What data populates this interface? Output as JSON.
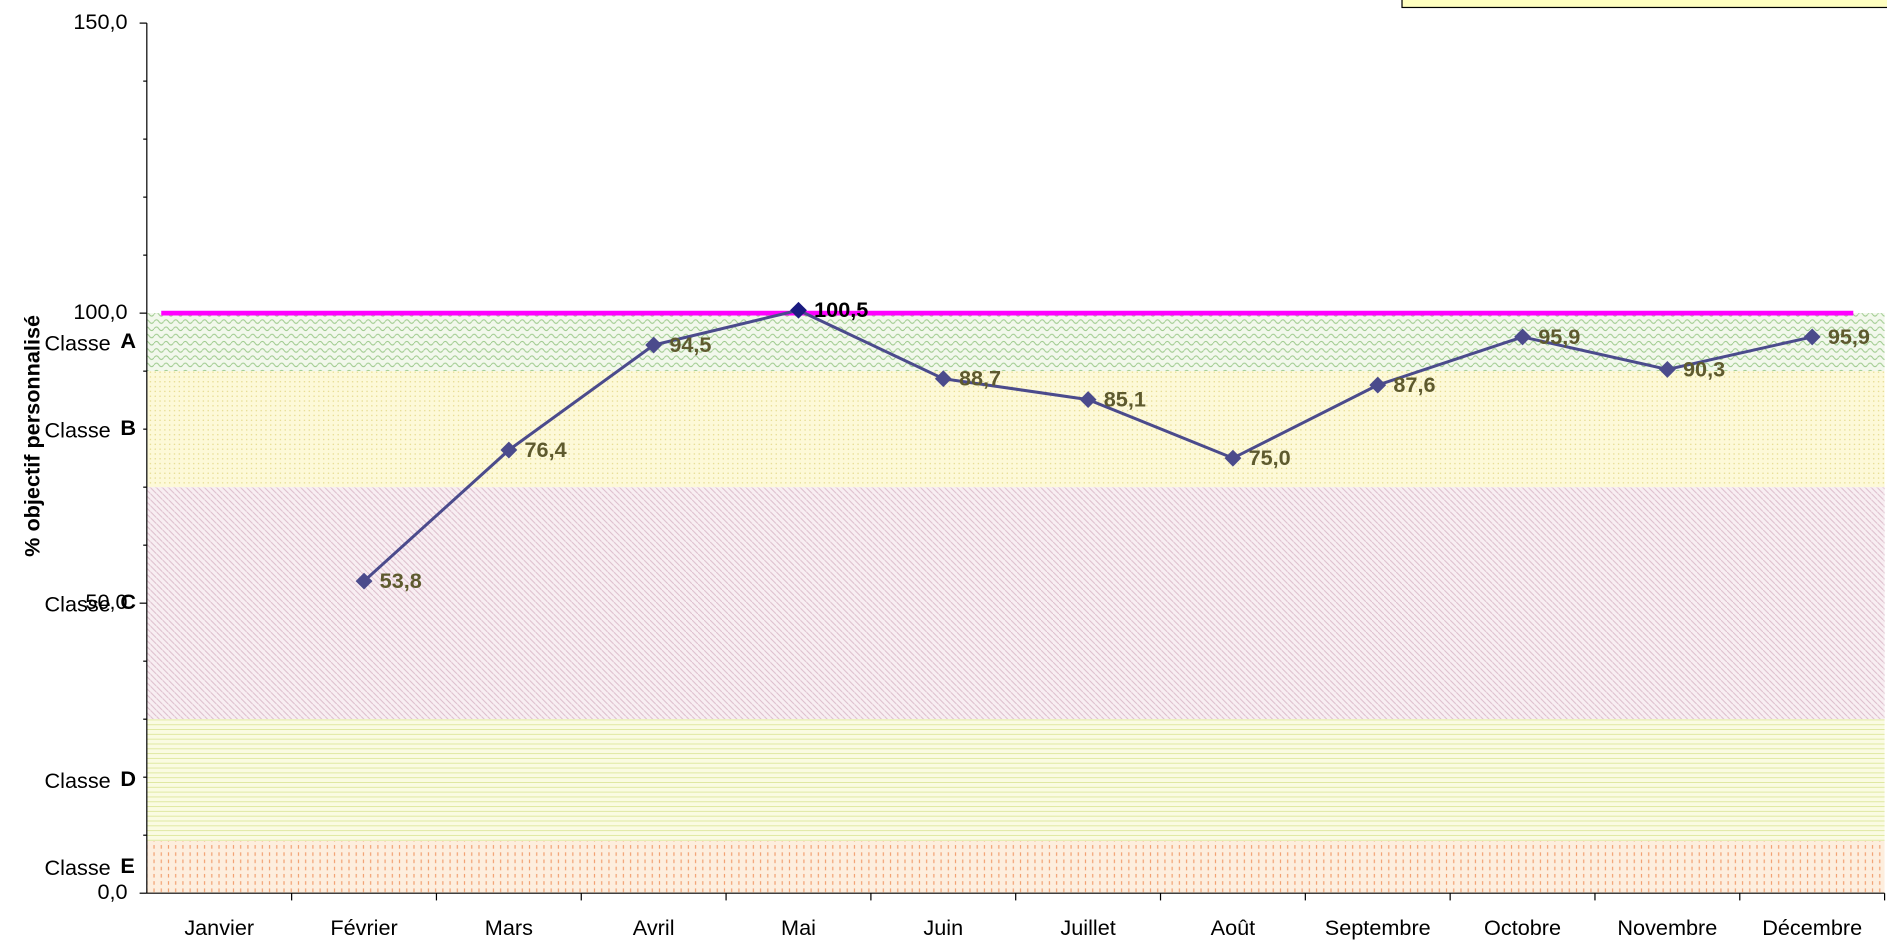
{
  "chart_data": {
    "type": "line",
    "ylabel": "% objectif personnalisé",
    "categories": [
      "Janvier",
      "Février",
      "Mars",
      "Avril",
      "Mai",
      "Juin",
      "Juillet",
      "Août",
      "Septembre",
      "Octobre",
      "Novembre",
      "Décembre"
    ],
    "series": [
      {
        "color": "#4b4b8c",
        "values": [
          null,
          53.8,
          76.4,
          94.5,
          100.5,
          88.7,
          85.1,
          75.0,
          87.6,
          95.9,
          90.3,
          95.9
        ],
        "value_labels": [
          null,
          "53,8",
          "76,4",
          "94,5",
          "100,5",
          "88,7",
          "85,1",
          "75,0",
          "87,6",
          "95,9",
          "90,3",
          "95,9"
        ]
      }
    ],
    "target": {
      "value": 100,
      "color": "#ff00ff"
    },
    "bands": [
      {
        "label": "Classe",
        "letter": "A",
        "from": 90,
        "to": 100,
        "pattern": "pa"
      },
      {
        "label": "Classe",
        "letter": "B",
        "from": 70,
        "to": 90,
        "pattern": "pb"
      },
      {
        "label": "Classe",
        "letter": "C",
        "from": 30,
        "to": 70,
        "pattern": "pc"
      },
      {
        "label": "Classe",
        "letter": "D",
        "from": 9,
        "to": 30,
        "pattern": "pd"
      },
      {
        "label": "Classe",
        "letter": "E",
        "from": 0,
        "to": 9,
        "pattern": "pe"
      }
    ],
    "ylim": [
      0,
      150
    ],
    "yticks": [
      {
        "value": 0,
        "label": "0,0"
      },
      {
        "value": 50,
        "label": "50,0"
      },
      {
        "value": 100,
        "label": "100,0"
      },
      {
        "value": 150,
        "label": "150,0"
      }
    ],
    "yticks_minor": [
      10,
      20,
      30,
      40,
      60,
      70,
      80,
      90,
      110,
      120,
      130,
      140
    ]
  }
}
